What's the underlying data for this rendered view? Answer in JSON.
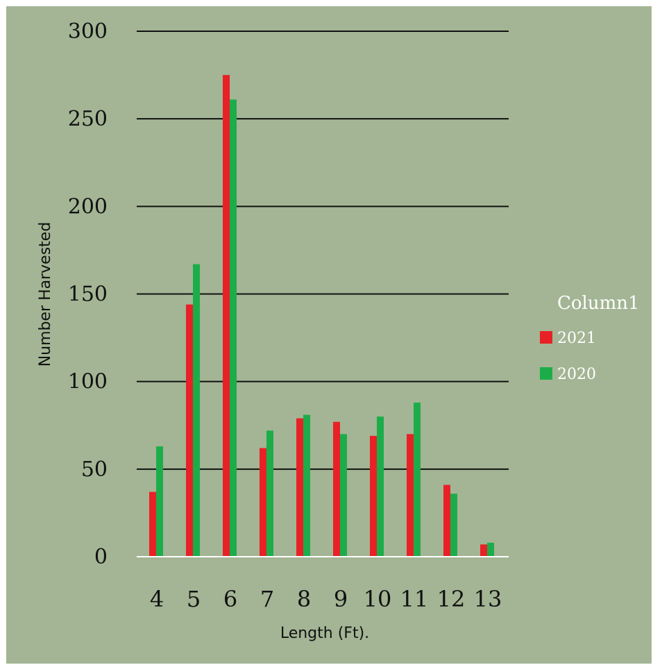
{
  "chart_data": {
    "type": "bar",
    "title": "",
    "xlabel": "Length (Ft).",
    "ylabel": "Number Harvested",
    "categories": [
      "4",
      "5",
      "6",
      "7",
      "8",
      "9",
      "10",
      "11",
      "12",
      "13"
    ],
    "series": [
      {
        "name": "2021",
        "color": "#e82127",
        "values": [
          37,
          144,
          275,
          62,
          79,
          77,
          69,
          70,
          41,
          7
        ]
      },
      {
        "name": "2020",
        "color": "#1cad4a",
        "values": [
          63,
          167,
          261,
          72,
          81,
          70,
          80,
          88,
          36,
          8
        ]
      }
    ],
    "ylim": [
      0,
      300
    ],
    "yticks": [
      "0",
      "50",
      "100",
      "150",
      "200",
      "250",
      "300"
    ],
    "grid": true,
    "legend": {
      "title": "Column1",
      "position": "right"
    },
    "colors": {
      "background": "#a3b594",
      "gridline": "#111111",
      "baseline": "#ffffff"
    }
  }
}
